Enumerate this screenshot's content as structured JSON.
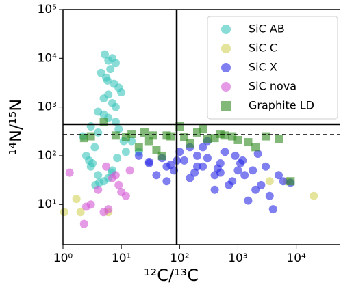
{
  "chart_data": {
    "type": "scatter",
    "xlabel": "¹²C/¹³C",
    "ylabel": "¹⁴N/¹⁵N",
    "xscale": "log",
    "yscale": "log",
    "xlim": [
      1,
      57000
    ],
    "ylim": [
      1.5,
      100000
    ],
    "xticks": [
      {
        "value": 1,
        "label": "10⁰"
      },
      {
        "value": 10,
        "label": "10¹"
      },
      {
        "value": 100,
        "label": "10²"
      },
      {
        "value": 1000,
        "label": "10³"
      },
      {
        "value": 10000,
        "label": "10⁴"
      }
    ],
    "yticks": [
      {
        "value": 10,
        "label": "10¹"
      },
      {
        "value": 100,
        "label": "10²"
      },
      {
        "value": 1000,
        "label": "10³"
      },
      {
        "value": 10000,
        "label": "10⁴"
      },
      {
        "value": 100000,
        "label": "10⁵"
      }
    ],
    "legend": "upper right",
    "reference_lines": [
      {
        "axis": "x",
        "value": 89,
        "style": "solid"
      },
      {
        "axis": "y",
        "value": 440,
        "style": "solid"
      },
      {
        "axis": "y",
        "value": 272,
        "style": "dashed"
      }
    ],
    "series": [
      {
        "name": "SiC AB",
        "color": "#3cc4bc",
        "marker": "circle",
        "x": [
          5.2,
          6,
          7,
          8,
          4.5,
          5.5,
          6.5,
          7.5,
          9,
          10,
          5,
          6,
          7,
          8,
          4,
          5,
          6,
          3,
          4,
          8,
          9,
          11,
          3.5,
          2.5,
          2.8,
          3,
          4,
          5,
          6,
          7,
          12,
          15,
          20,
          2.2,
          3.2,
          3.6,
          4.2,
          8.5,
          6.8,
          5.8
        ],
        "values": [
          12000,
          9000,
          10000,
          8000,
          5000,
          4000,
          6000,
          3000,
          2500,
          2000,
          1500,
          1800,
          1200,
          1000,
          800,
          700,
          600,
          400,
          300,
          500,
          350,
          200,
          150,
          100,
          80,
          60,
          40,
          30,
          35,
          50,
          120,
          200,
          120,
          250,
          70,
          25,
          28,
          90,
          45,
          3500
        ]
      },
      {
        "name": "SiC C",
        "color": "#d2d25a",
        "marker": "circle",
        "x": [
          1.7,
          2,
          1.05,
          6,
          3500,
          20000,
          7000
        ],
        "values": [
          13,
          7,
          7,
          7,
          30,
          15,
          30
        ]
      },
      {
        "name": "SiC X",
        "color": "#2a2ae6",
        "marker": "circle",
        "x": [
          20,
          30,
          40,
          50,
          60,
          80,
          100,
          120,
          150,
          200,
          250,
          300,
          400,
          500,
          600,
          800,
          1000,
          1200,
          1500,
          2000,
          2500,
          3000,
          4000,
          5000,
          6000,
          8000,
          150,
          200,
          300,
          500,
          700,
          900,
          1100,
          1800,
          3500,
          60,
          90,
          250,
          450,
          30,
          70,
          1300,
          2200,
          400,
          180
        ],
        "values": [
          100,
          70,
          40,
          90,
          60,
          50,
          120,
          80,
          150,
          100,
          60,
          200,
          40,
          70,
          120,
          30,
          50,
          80,
          12,
          20,
          25,
          60,
          8,
          40,
          30,
          28,
          35,
          60,
          90,
          45,
          25,
          100,
          70,
          50,
          15,
          30,
          80,
          150,
          55,
          75,
          65,
          40,
          110,
          20,
          45
        ]
      },
      {
        "name": "SiC nova",
        "color": "#d456d4",
        "marker": "circle",
        "x": [
          1.3,
          2.3,
          3,
          4,
          5,
          6,
          7,
          8,
          10,
          12,
          14,
          5.5,
          2.5,
          9
        ],
        "values": [
          45,
          4,
          10,
          20,
          7,
          8,
          35,
          40,
          18,
          15,
          50,
          60,
          9,
          25
        ]
      },
      {
        "name": "Graphite LD",
        "color": "#2e8a1e",
        "marker": "square",
        "x": [
          2.3,
          3,
          5,
          8,
          12,
          15,
          20,
          30,
          40,
          50,
          70,
          100,
          150,
          200,
          300,
          400,
          600,
          800,
          1000,
          1500,
          2000,
          3000,
          5000,
          8000,
          25,
          60,
          120,
          250,
          500,
          35
        ],
        "values": [
          230,
          250,
          500,
          260,
          240,
          280,
          150,
          200,
          130,
          100,
          250,
          400,
          180,
          300,
          220,
          230,
          260,
          250,
          210,
          190,
          150,
          250,
          220,
          30,
          300,
          260,
          240,
          350,
          280,
          260
        ]
      }
    ]
  }
}
